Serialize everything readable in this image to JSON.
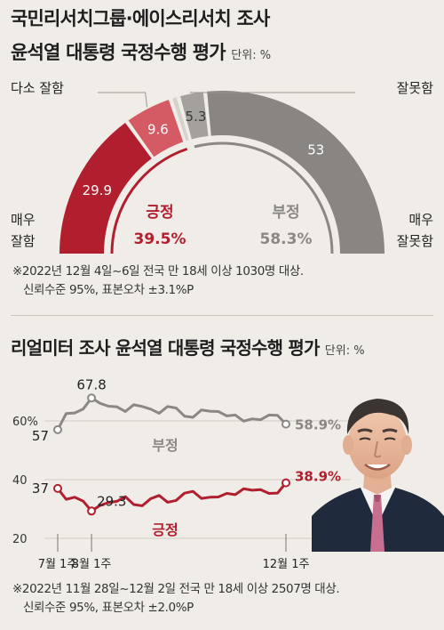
{
  "chart_data": [
    {
      "type": "gauge",
      "title_line1": "국민리서치그룹·에이스리서치 조사",
      "title_line2": "윤석열 대통령 국정수행 평가",
      "unit_label": "단위: %",
      "segments": [
        {
          "name": "매우 잘함",
          "label_line1": "매우",
          "label_line2": "잘함",
          "value": 29.9,
          "color": "#b11f2e"
        },
        {
          "name": "다소 잘함",
          "label_line1": "다소 잘함",
          "label_line2": "",
          "value": 9.6,
          "color": "#d45a63"
        },
        {
          "name": "잘 모름",
          "label_line1": "",
          "label_line2": "",
          "value": 1.6,
          "color": "#d6d3ce"
        },
        {
          "name": "잘못함",
          "label_line1": "잘못함",
          "label_line2": "",
          "value": 5.3,
          "color": "#a4a19c"
        },
        {
          "name": "매우 잘못함",
          "label_line1": "매우",
          "label_line2": "잘못함",
          "value": 53,
          "color": "#888582"
        }
      ],
      "positive": {
        "label": "긍정",
        "value": "39.5%",
        "color": "#b11f2e"
      },
      "negative": {
        "label": "부정",
        "value": "58.3%",
        "color": "#8a8784"
      },
      "note_line1": "※2022년 12월 4일~6일 전국 만 18세 이상 1030명 대상.",
      "note_line2": "신뢰수준 95%, 표본오차 ±3.1%P"
    },
    {
      "type": "line",
      "title": "리얼미터 조사 윤석열 대통령 국정수행 평가",
      "unit_label": "단위: %",
      "x_tick_labels": [
        "7월 1주",
        "8월 1주",
        "12월 1주"
      ],
      "y_tick_labels": [
        "60%",
        "40",
        "20"
      ],
      "series": [
        {
          "name": "부정",
          "color": "#8a8784",
          "values": [
            57,
            62.5,
            62.7,
            64,
            67.8,
            66,
            65,
            64.8,
            63.2,
            65.5,
            64.9,
            64,
            62.6,
            64.9,
            64.4,
            61.6,
            61.2,
            63.7,
            63.3,
            63.2,
            61.7,
            62,
            59.9,
            60.7,
            60.4,
            62,
            61.9,
            58.9
          ],
          "start_label": "57",
          "peak_label": "67.8",
          "end_label": "58.9%"
        },
        {
          "name": "긍정",
          "color": "#b11f2e",
          "values": [
            37,
            33.3,
            34,
            32.7,
            29.3,
            31.2,
            32.2,
            32.6,
            34.2,
            31.5,
            31.1,
            33.5,
            34.6,
            32.3,
            32.9,
            35.4,
            36,
            33.6,
            34,
            34.1,
            35.3,
            34.9,
            36.9,
            36.4,
            36.6,
            35.3,
            35.4,
            38.9
          ],
          "start_label": "37",
          "trough_label": "29.3",
          "end_label": "38.9%"
        }
      ],
      "note_line1": "※2022년 11월 28일~12월 2일 전국 만 18세 이상 2507명 대상.",
      "note_line2": "신뢰수준 95%, 표본오차 ±2.0%P"
    }
  ],
  "photo": {
    "subject": "portrait-photo"
  }
}
